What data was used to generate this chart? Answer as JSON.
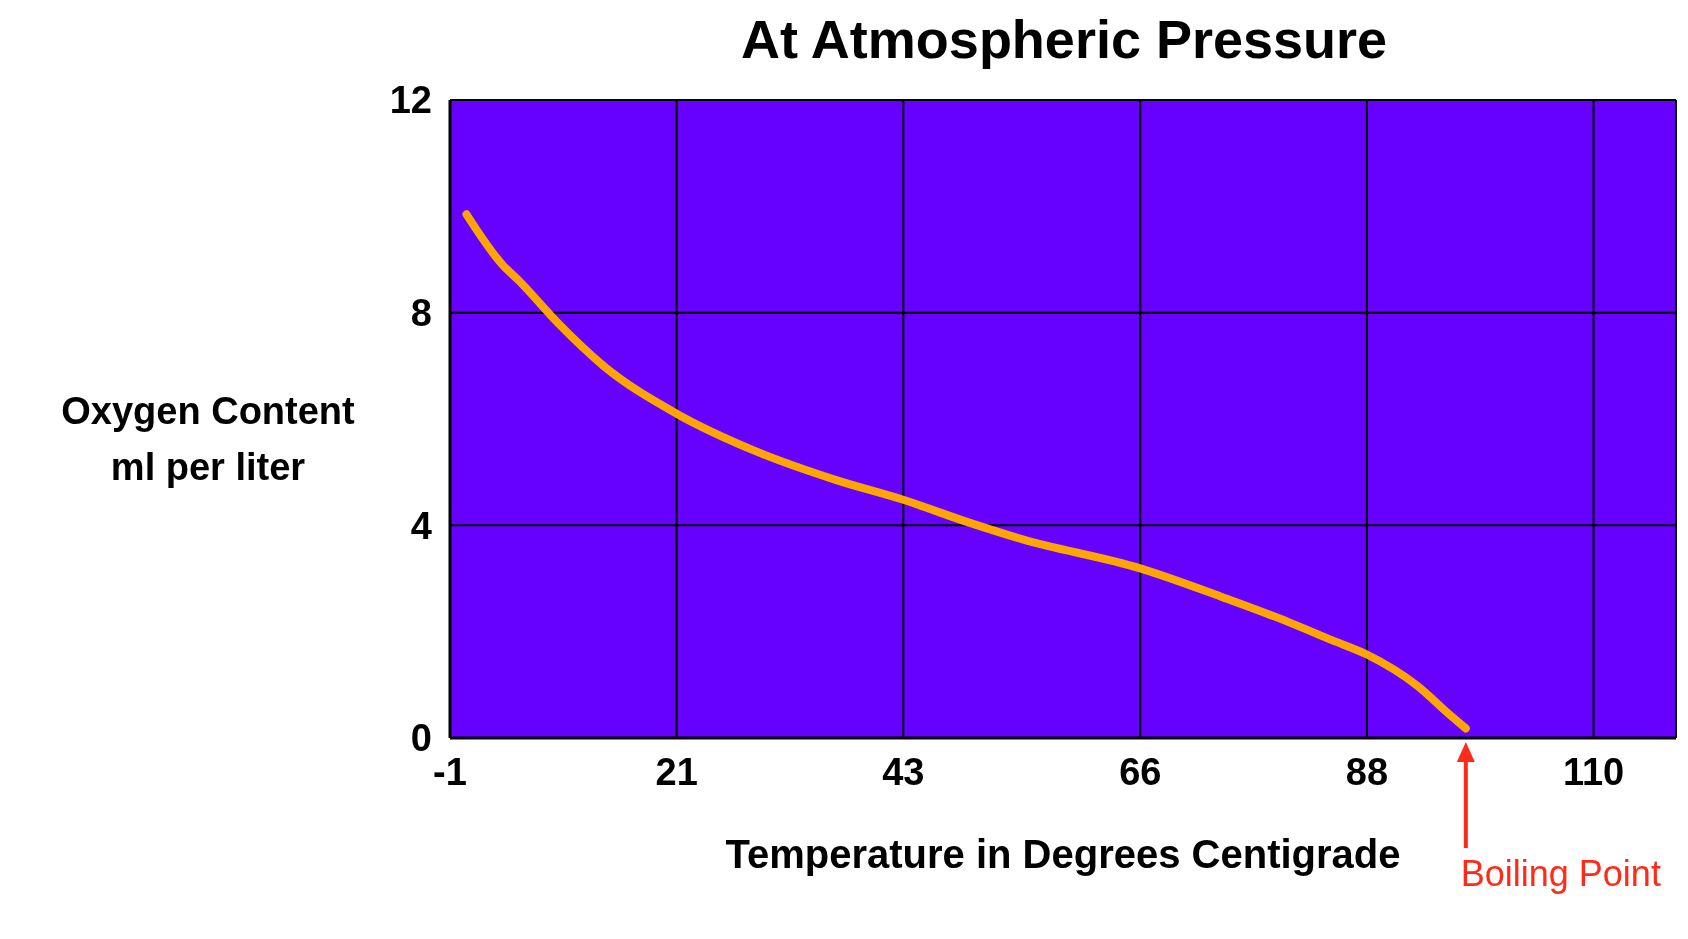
{
  "chart_data": {
    "type": "line",
    "title": "At Atmospheric Pressure",
    "xlabel": "Temperature in Degrees Centigrade",
    "ylabel": "Oxygen Content ml per liter",
    "x": [
      0.6,
      4.1,
      5.7,
      9.5,
      13.9,
      21,
      28.6,
      36.5,
      43,
      49.4,
      54.5,
      66,
      74.1,
      80.4,
      84.6,
      88,
      92.9,
      95.9,
      97.6
    ],
    "series": [
      {
        "color": "#ffa500",
        "values": [
          9.85,
          8.9,
          8.6,
          7.8,
          7.0,
          6.1,
          5.4,
          4.85,
          4.48,
          4.05,
          3.74,
          3.19,
          2.64,
          2.18,
          1.84,
          1.57,
          0.98,
          0.46,
          0.18
        ]
      }
    ],
    "xlim": [
      -1,
      118
    ],
    "xticks": [
      -1,
      21,
      43,
      66,
      88,
      110
    ],
    "ylim": [
      0,
      12
    ],
    "yticks": [
      0,
      4,
      8,
      12
    ],
    "grid": true,
    "marker": "none",
    "line_style": "solid",
    "annotations": [
      "Boiling Point"
    ]
  }
}
